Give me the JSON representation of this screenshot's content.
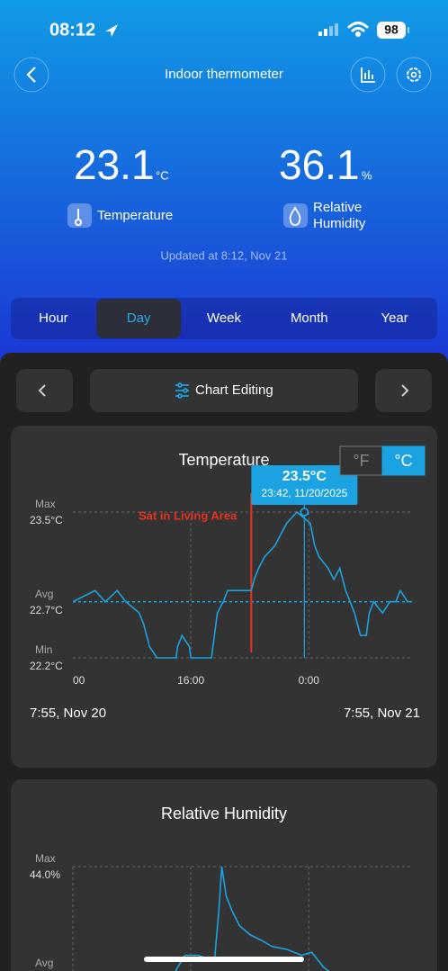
{
  "status_bar": {
    "time": "08:12",
    "battery": "98"
  },
  "header": {
    "title": "Indoor thermometer"
  },
  "readings": [
    {
      "value": "23.1",
      "unit": "°C",
      "label": "Temperature"
    },
    {
      "value": "36.1",
      "unit": "%",
      "label": "Relative Humidity"
    }
  ],
  "updated": "Updated at 8:12,  Nov 21",
  "tabs": {
    "items": [
      "Hour",
      "Day",
      "Week",
      "Month",
      "Year"
    ],
    "selected_index": 1
  },
  "toolbar": {
    "label": "Chart Editing"
  },
  "chart_data": [
    {
      "type": "line",
      "title": "Temperature",
      "unit_toggle": [
        "°F",
        "°C"
      ],
      "unit_selected": 1,
      "color": "#1aa3e0",
      "x": [
        8.0,
        9.5,
        10.2,
        11.0,
        11.6,
        12.5,
        12.8,
        13.0,
        13.2,
        13.7,
        15.0,
        15.1,
        15.4,
        15.9,
        16.0,
        17.4,
        17.6,
        17.8,
        18.2,
        18.5,
        20.1,
        20.3,
        20.6,
        21.0,
        21.7,
        22.1,
        22.5,
        23.2,
        24.1,
        24.4,
        24.7,
        25.3,
        25.7,
        26.1,
        26.5,
        26.8,
        27.1,
        27.5,
        27.9,
        28.1,
        28.4,
        29.0,
        29.5,
        29.9,
        30.2,
        30.7,
        31.0
      ],
      "values": [
        22.7,
        22.8,
        22.7,
        22.8,
        22.7,
        22.6,
        22.5,
        22.4,
        22.3,
        22.2,
        22.2,
        22.3,
        22.4,
        22.3,
        22.2,
        22.2,
        22.4,
        22.6,
        22.7,
        22.8,
        22.8,
        22.9,
        23.0,
        23.1,
        23.2,
        23.3,
        23.4,
        23.5,
        23.4,
        23.2,
        23.1,
        23.0,
        22.9,
        23.0,
        22.8,
        22.7,
        22.6,
        22.4,
        22.4,
        22.6,
        22.7,
        22.6,
        22.7,
        22.7,
        22.8,
        22.7,
        22.7
      ],
      "xlim": [
        8,
        31
      ],
      "xticks": [
        {
          "value": 8,
          "label": "00"
        },
        {
          "value": 16,
          "label": "16:00"
        },
        {
          "value": 24,
          "label": "0:00"
        }
      ],
      "xgrid": [
        16,
        24
      ],
      "ylim": [
        22.2,
        23.5
      ],
      "yticks": [
        {
          "value": 22.2,
          "label": "22.2°C"
        },
        {
          "value": 22.7,
          "label": "22.7°C"
        },
        {
          "value": 23.5,
          "label": "23.5°C"
        }
      ],
      "ytick_names": [
        "Min",
        "Avg",
        "Max"
      ],
      "highlight_tick": 1,
      "highlight_color": "#1aa3e0",
      "annotation": {
        "text": "Sat in Living Area",
        "x": 20.1,
        "color": "#e8321e"
      },
      "tooltip": {
        "x": 23.7,
        "value": 23.5,
        "value_label": "23.5°C",
        "time": "23:42,  11/20/2025"
      },
      "range_start": "7:55,  Nov 20",
      "range_end": "7:55,  Nov 21"
    },
    {
      "type": "line",
      "title": "Relative Humidity",
      "color": "#1aa3e0",
      "x": [
        8.0,
        14.5,
        15.0,
        15.6,
        16.5,
        17.6,
        17.9,
        18.1,
        18.4,
        18.8,
        19.3,
        20.0,
        20.8,
        21.5,
        22.5,
        23.5,
        24.2,
        25.0,
        26.0
      ],
      "values": [
        40.0,
        40.0,
        40.5,
        41.0,
        41.0,
        40.8,
        42.5,
        44.0,
        43.0,
        42.5,
        42.0,
        41.7,
        41.5,
        41.3,
        41.2,
        41.0,
        41.1,
        40.6,
        40.2
      ],
      "xlim": [
        8,
        31
      ],
      "xgrid": [
        8,
        16,
        24
      ],
      "ylim": [
        38,
        44
      ],
      "yticks": [
        {
          "value": 44.0,
          "label": "44.0%"
        }
      ],
      "ytick_names": [
        "Max"
      ],
      "avg_name": "Avg"
    }
  ]
}
